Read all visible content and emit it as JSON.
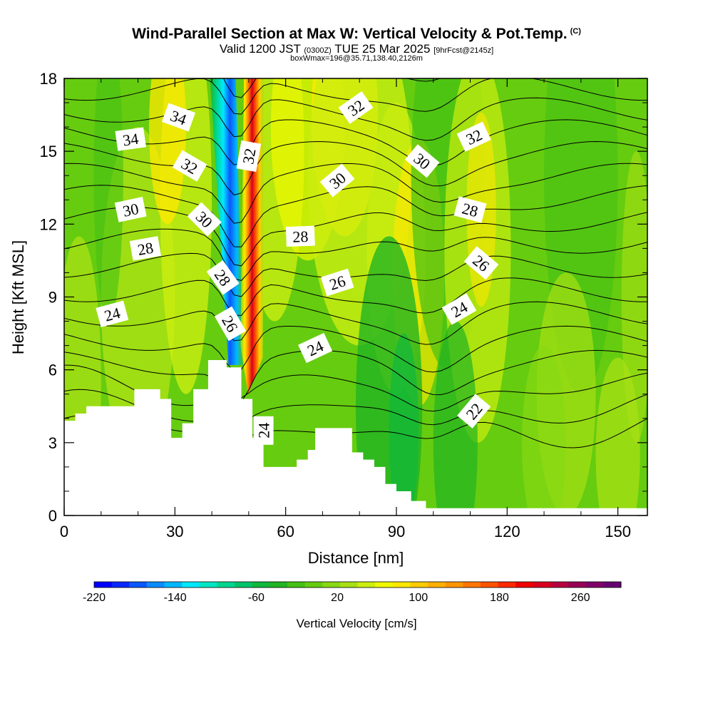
{
  "title": "Wind-Parallel Section at Max W: Vertical Velocity & Pot.Temp.",
  "title_mark": "(C)",
  "subtitle_main": "Valid 1200 JST",
  "subtitle_utc": "(0300Z)",
  "subtitle_date": "TUE 25 Mar 2025",
  "subtitle_fcst": "[9hrFcst@2145z]",
  "subtitle2": "boxWmax=196@35.71,138.40,2126m",
  "chart_data": {
    "type": "heatmap",
    "title": "Wind-Parallel Section at Max W: Vertical Velocity & Pot.Temp.",
    "xlabel": "Distance [nm]",
    "ylabel": "Height [Kft MSL]",
    "xlim": [
      0,
      158
    ],
    "ylim": [
      0,
      18
    ],
    "x_ticks": [
      0,
      30,
      60,
      90,
      120,
      150
    ],
    "y_ticks": [
      0,
      3,
      6,
      9,
      12,
      15,
      18
    ],
    "terrain": {
      "x": [
        0,
        3,
        3,
        6,
        6,
        19,
        19,
        26,
        26,
        29,
        29,
        32,
        32,
        35,
        35,
        39,
        39,
        44,
        44,
        48,
        48,
        51,
        51,
        54,
        54,
        63,
        63,
        66,
        66,
        68,
        68,
        78,
        78,
        81,
        81,
        84,
        84,
        87,
        87,
        90,
        90,
        94,
        94,
        98,
        98,
        103,
        103,
        158
      ],
      "y": [
        3.9,
        3.9,
        4.2,
        4.2,
        4.5,
        4.5,
        5.2,
        5.2,
        4.8,
        4.8,
        3.2,
        3.2,
        3.8,
        3.8,
        5.2,
        5.2,
        6.4,
        6.4,
        6.1,
        6.1,
        4.8,
        4.8,
        3.2,
        3.2,
        2.0,
        2.0,
        2.3,
        2.3,
        2.7,
        2.7,
        3.6,
        3.6,
        2.6,
        2.6,
        2.3,
        2.3,
        2.0,
        2.0,
        1.3,
        1.3,
        1.0,
        1.0,
        0.6,
        0.6,
        0.3,
        0.3,
        0.3,
        0.3
      ]
    },
    "vertical_velocity": {
      "name": "Vertical Velocity [cm/s]",
      "features": [
        {
          "kind": "updraft",
          "x_bottom": 51,
          "x_top": 50.5,
          "y_range": [
            5.0,
            18
          ],
          "peak": 260
        },
        {
          "kind": "downdraft",
          "x_bottom": 46,
          "x_top": 43,
          "y_range": [
            6.2,
            18
          ],
          "peak": -220
        },
        {
          "kind": "weak-updraft",
          "x": 80,
          "y_range": [
            13,
            18
          ],
          "peak": 60
        },
        {
          "kind": "weak-updraft",
          "x": 112,
          "y_range": [
            8,
            16
          ],
          "peak": 40
        },
        {
          "kind": "weak-downdraft",
          "x": 92,
          "y_range": [
            0.5,
            8
          ],
          "peak": -60
        }
      ]
    },
    "potential_temperature_labels": [
      {
        "value": "34",
        "x": 18,
        "y": 15.5
      },
      {
        "value": "34",
        "x": 31,
        "y": 16.4
      },
      {
        "value": "32",
        "x": 34,
        "y": 14.4
      },
      {
        "value": "32",
        "x": 50,
        "y": 14.8
      },
      {
        "value": "32",
        "x": 79,
        "y": 16.8
      },
      {
        "value": "32",
        "x": 111,
        "y": 15.6
      },
      {
        "value": "30",
        "x": 18,
        "y": 12.6
      },
      {
        "value": "30",
        "x": 38,
        "y": 12.2
      },
      {
        "value": "30",
        "x": 74,
        "y": 13.8
      },
      {
        "value": "30",
        "x": 97,
        "y": 14.6
      },
      {
        "value": "28",
        "x": 22,
        "y": 11.0
      },
      {
        "value": "28",
        "x": 43,
        "y": 9.8
      },
      {
        "value": "28",
        "x": 64,
        "y": 11.5
      },
      {
        "value": "28",
        "x": 110,
        "y": 12.6
      },
      {
        "value": "26",
        "x": 45,
        "y": 7.9
      },
      {
        "value": "26",
        "x": 74,
        "y": 9.6
      },
      {
        "value": "26",
        "x": 113,
        "y": 10.4
      },
      {
        "value": "24",
        "x": 13,
        "y": 8.3
      },
      {
        "value": "24",
        "x": 54,
        "y": 3.5
      },
      {
        "value": "24",
        "x": 68,
        "y": 6.9
      },
      {
        "value": "24",
        "x": 107,
        "y": 8.5
      },
      {
        "value": "22",
        "x": 111,
        "y": 4.3
      }
    ],
    "colorbar": {
      "title": "Vertical Velocity [cm/s]",
      "labels": [
        "-220",
        "-140",
        "-60",
        "20",
        "100",
        "180",
        "260"
      ],
      "range": [
        -220,
        300
      ],
      "colors": [
        "#0000ff",
        "#0a28ff",
        "#0a58ff",
        "#0a8cff",
        "#00b8ff",
        "#00e8ff",
        "#00e6c2",
        "#00d690",
        "#00c46a",
        "#10b83c",
        "#22b422",
        "#44c014",
        "#66cc10",
        "#88d812",
        "#a8e014",
        "#ccee10",
        "#f0f800",
        "#ffe800",
        "#ffcc00",
        "#ffb000",
        "#ff9400",
        "#ff7600",
        "#ff5200",
        "#ff2800",
        "#f00000",
        "#d8001e",
        "#b80040",
        "#980056",
        "#800066",
        "#660070"
      ]
    }
  }
}
